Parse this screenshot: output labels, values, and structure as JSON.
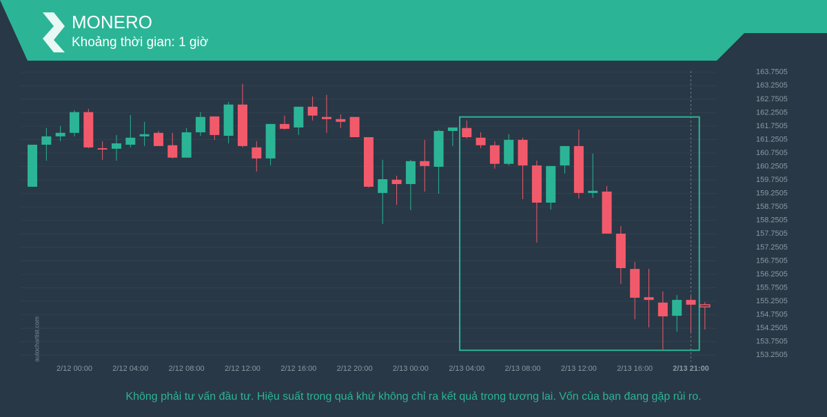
{
  "header": {
    "title": "MONERO",
    "subtitle": "Khoảng thời gian: 1 giờ"
  },
  "watermark": "autochartist.com",
  "disclaimer": "Không phải tư vấn đầu tư. Hiệu suất trong quá khứ không chỉ ra kết quả trong tương lai. Vốn của bạn đang gặp rủi ro.",
  "chart_data": {
    "type": "candlestick",
    "up_color": "#2bb596",
    "down_color": "#f25a6b",
    "grid": true,
    "categories": [
      null,
      null,
      null,
      "2/12 00:00",
      null,
      null,
      null,
      "2/12 04:00",
      null,
      null,
      null,
      "2/12 08:00",
      null,
      null,
      null,
      "2/12 12:00",
      null,
      null,
      null,
      "2/12 16:00",
      null,
      null,
      null,
      "2/12 20:00",
      null,
      null,
      null,
      "2/13 00:00",
      null,
      null,
      null,
      "2/13 04:00",
      null,
      null,
      null,
      "2/13 08:00",
      null,
      null,
      null,
      "2/13 12:00",
      null,
      null,
      null,
      "2/13 16:00",
      null,
      null,
      null,
      "2/13 21:00",
      null
    ],
    "open": [
      159.5,
      161.06,
      161.37,
      161.5,
      162.27,
      160.93,
      160.91,
      161.06,
      161.37,
      161.5,
      161.04,
      160.58,
      161.52,
      162.11,
      161.39,
      162.55,
      160.96,
      160.55,
      161.83,
      161.7,
      162.47,
      162.09,
      162.01,
      162.09,
      161.34,
      159.27,
      159.76,
      159.6,
      160.45,
      160.24,
      161.57,
      161.68,
      161.32,
      161.04,
      160.35,
      161.24,
      160.29,
      158.91,
      160.29,
      161.01,
      159.27,
      159.32,
      157.76,
      156.45,
      155.4,
      155.2,
      154.71,
      155.3,
      155.12
    ],
    "high": [
      161.06,
      161.68,
      161.75,
      162.34,
      162.39,
      161.19,
      161.42,
      162.16,
      161.91,
      161.57,
      161.5,
      161.68,
      162.27,
      162.11,
      162.65,
      163.32,
      161.19,
      161.83,
      162.14,
      162.47,
      162.85,
      162.91,
      162.19,
      162.09,
      161.34,
      160.5,
      159.91,
      160.5,
      161.24,
      161.62,
      161.7,
      161.96,
      161.52,
      161.19,
      161.45,
      161.32,
      160.47,
      160.27,
      161.01,
      161.62,
      160.73,
      159.53,
      158.04,
      156.71,
      156.45,
      155.61,
      155.48,
      155.43,
      155.22
    ],
    "low": [
      159.5,
      160.47,
      161.19,
      161.37,
      160.93,
      160.5,
      160.47,
      160.96,
      161.01,
      161.01,
      160.55,
      160.58,
      161.39,
      161.24,
      161.11,
      160.96,
      160.06,
      160.29,
      161.62,
      161.42,
      161.96,
      161.5,
      161.68,
      161.34,
      159.47,
      158.12,
      158.83,
      158.63,
      159.32,
      159.24,
      161.01,
      161.29,
      160.93,
      160.17,
      160.29,
      159.04,
      157.43,
      158.65,
      159.99,
      159.06,
      159.09,
      157.76,
      155.89,
      154.58,
      154.28,
      153.46,
      154.12,
      154.1,
      154.2
    ],
    "close": [
      161.06,
      161.37,
      161.5,
      162.27,
      160.96,
      160.88,
      161.11,
      161.32,
      161.45,
      161.01,
      160.58,
      161.52,
      162.09,
      161.42,
      162.55,
      161.01,
      160.55,
      161.83,
      161.65,
      162.47,
      162.14,
      162.01,
      161.91,
      161.34,
      159.5,
      159.78,
      159.6,
      160.45,
      160.27,
      161.57,
      161.7,
      161.34,
      161.04,
      160.35,
      161.24,
      160.29,
      158.91,
      160.27,
      161.01,
      159.27,
      159.35,
      157.76,
      156.48,
      155.38,
      155.3,
      154.69,
      155.3,
      155.12,
      155.04
    ],
    "pattern_range": [
      153.43,
      162.09
    ],
    "ylim": [
      153.0005,
      164.0005
    ],
    "yticks": [
      153.2505,
      153.7505,
      154.2505,
      154.7505,
      155.2505,
      155.7505,
      156.2505,
      156.7505,
      157.2505,
      157.7505,
      158.2505,
      158.7505,
      159.2505,
      159.7505,
      160.2505,
      160.7505,
      161.2505,
      161.7505,
      162.2505,
      162.7505,
      163.2505,
      163.7505
    ]
  }
}
